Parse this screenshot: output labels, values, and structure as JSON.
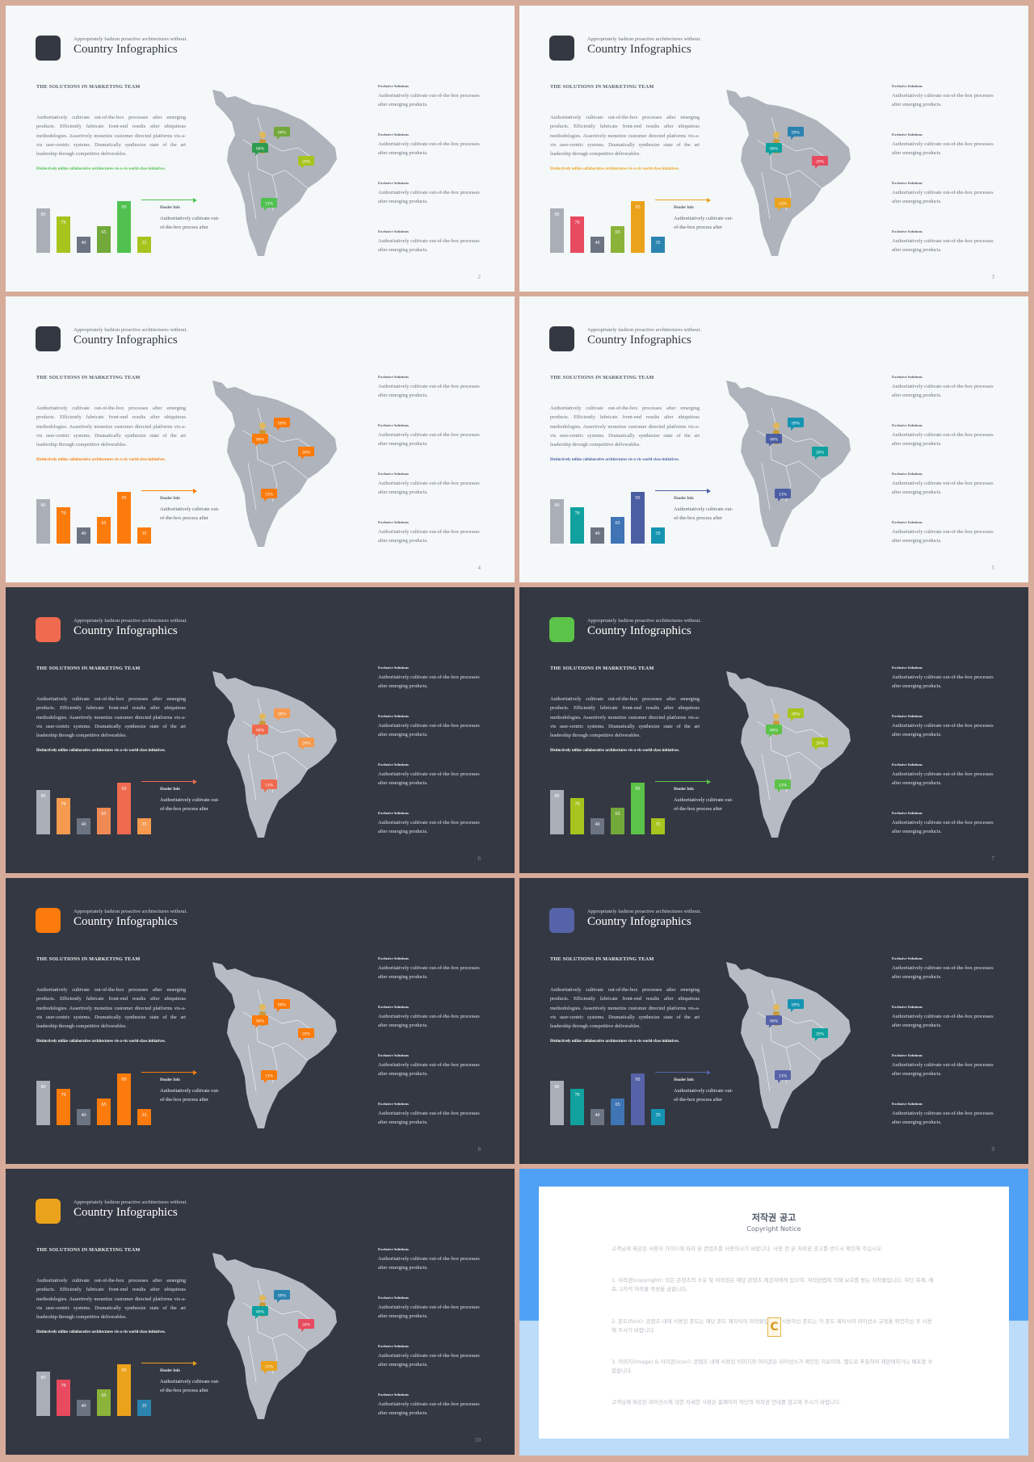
{
  "common": {
    "tagline": "Appropriately fashion proactive architectures without.",
    "title": "Country Infographics",
    "section_heading": "THE SOLUTIONS IN MARKETING TEAM",
    "body": "Authoritatively cultivate out-of-the-box processes after emerging products. Efficiently fabricate front-end results after ubiquitous methodologies. Assertively monetize customer directed platforms vis-a-vis user-centric systems. Dramatically synthesize state of the art leadership through competitive deliverables.",
    "distinct": "Distinctively utilize collaborative architectures vis-a-vis world-class initiatives.",
    "header_title": "Header Info",
    "header_text": "Authoritatively cultivate out-of-the-box process after",
    "bar_labels": [
      "80",
      "79",
      "40",
      "65",
      "95",
      "35"
    ],
    "map_labels": [
      "09%",
      "06%",
      "20%",
      "13%"
    ],
    "columns": [
      {
        "title": "Exclusive Solutions",
        "text": "Authoritatively cultivate out-of-the-box processes after emerging products."
      },
      {
        "title": "Exclusive Solutions",
        "text": "Authoritatively cultivate out-of-the-box processes after emerging products."
      },
      {
        "title": "Exclusive Solutions",
        "text": "Authoritatively cultivate out-of-the-box processes after emerging products."
      },
      {
        "title": "Exclusive Solutions",
        "text": "Authoritatively cultivate out-of-the-box processes after emerging products."
      }
    ]
  },
  "slides": [
    {
      "page": "2",
      "theme": "light",
      "accent": "#50c150",
      "bar_colors": [
        "#a9aeb7",
        "#a7c41e",
        "#6c7482",
        "#72a93a",
        "#50c150",
        "#a7c41e"
      ],
      "map_colors": [
        "#72a93a",
        "#2f9b4f",
        "#a7c41e",
        "#50c150"
      ]
    },
    {
      "page": "3",
      "theme": "light",
      "accent": "#eba21b",
      "bar_colors": [
        "#a9aeb7",
        "#e84a5f",
        "#6c7482",
        "#8bb33a",
        "#eba21b",
        "#2b83b0"
      ],
      "map_colors": [
        "#2b83b0",
        "#10a19f",
        "#e84a5f",
        "#eba21b"
      ]
    },
    {
      "page": "4",
      "theme": "light",
      "accent": "#fb7b0c",
      "bar_colors": [
        "#a9aeb7",
        "#fb7b0c",
        "#6c7482",
        "#fb7b0c",
        "#fb7b0c",
        "#fb7b0c"
      ],
      "map_colors": [
        "#fb7b0c",
        "#fb7b0c",
        "#fb7b0c",
        "#fb7b0c"
      ]
    },
    {
      "page": "5",
      "theme": "light",
      "accent": "#4c5ea3",
      "bar_colors": [
        "#a9aeb7",
        "#10a19f",
        "#6c7482",
        "#3f74b5",
        "#4c5ea3",
        "#1594b2"
      ],
      "map_colors": [
        "#1594b2",
        "#4c5ea3",
        "#10a19f",
        "#4c5ea3"
      ]
    },
    {
      "page": "6",
      "theme": "dark",
      "accent": "#f06a4f",
      "bar_colors": [
        "#a9aeb7",
        "#f59a4e",
        "#6c7482",
        "#f08a55",
        "#f06a4f",
        "#f59a4e"
      ],
      "map_colors": [
        "#f59a4e",
        "#f06a4f",
        "#f59a4e",
        "#f06a4f"
      ]
    },
    {
      "page": "7",
      "theme": "dark",
      "accent": "#5cc349",
      "bar_colors": [
        "#a9aeb7",
        "#a7c41e",
        "#6c7482",
        "#72a93a",
        "#5cc349",
        "#a7c41e"
      ],
      "map_colors": [
        "#a7c41e",
        "#5cc349",
        "#a7c41e",
        "#5cc349"
      ]
    },
    {
      "page": "8",
      "theme": "dark",
      "accent": "#fb7b0c",
      "bar_colors": [
        "#a9aeb7",
        "#fb7b0c",
        "#6c7482",
        "#fb7b0c",
        "#fb7b0c",
        "#fb7b0c"
      ],
      "map_colors": [
        "#fb7b0c",
        "#fb7b0c",
        "#fb7b0c",
        "#fb7b0c"
      ]
    },
    {
      "page": "9",
      "theme": "dark",
      "accent": "#5663a8",
      "bar_colors": [
        "#a9aeb7",
        "#10a19f",
        "#6c7482",
        "#3f74b5",
        "#5663a8",
        "#1594b2"
      ],
      "map_colors": [
        "#1594b2",
        "#5663a8",
        "#10a19f",
        "#5663a8"
      ]
    },
    {
      "page": "10",
      "theme": "dark",
      "accent": "#eba21b",
      "bar_colors": [
        "#a9aeb7",
        "#e84a5f",
        "#6c7482",
        "#8bb33a",
        "#eba21b",
        "#2b83b0"
      ],
      "map_colors": [
        "#2b83b0",
        "#10a19f",
        "#e84a5f",
        "#eba21b"
      ]
    }
  ],
  "copyright": {
    "title": "저작권 공고",
    "subtitle": "Copyright Notice",
    "intro": "고객님께 제공된 사용자 가이드에 따라 본 콘텐츠를 사용하시기 바랍니다. 사용 전 본 저작권 공고를 반드시 확인해 주십시오.",
    "p1": "1. 저작권(copyright): 모든 콘텐츠의 소유 및 저작권은 해당 콘텐츠 제공자에게 있으며, 저작권법에 의해 보호를 받는 저작물입니다. 무단 복제, 배포, 2차적 저작물 작성을 금합니다.",
    "p2": "2. 폰트(font): 콘텐츠 내에 사용된 폰트는 해당 폰트 제작사의 저작물입니다. 사용하신 폰트는 각 폰트 제작사의 라이선스 규정을 확인하신 후 사용해 주시기 바랍니다.",
    "p3": "3. 이미지(image) & 아이콘(icon): 콘텐츠 내에 사용된 이미지와 아이콘은 라이선스가 확인된 자료이며, 별도로 추출하여 재판매하거나 배포할 수 없습니다.",
    "outro": "고객님께 제공된 라이선스에 대한 자세한 사항은 홈페이지 하단의 저작권 안내를 참고해 주시기 바랍니다.",
    "badge": "C",
    "colors": {
      "top": "#4ea1f5",
      "bottom": "#bcdcfa"
    }
  }
}
